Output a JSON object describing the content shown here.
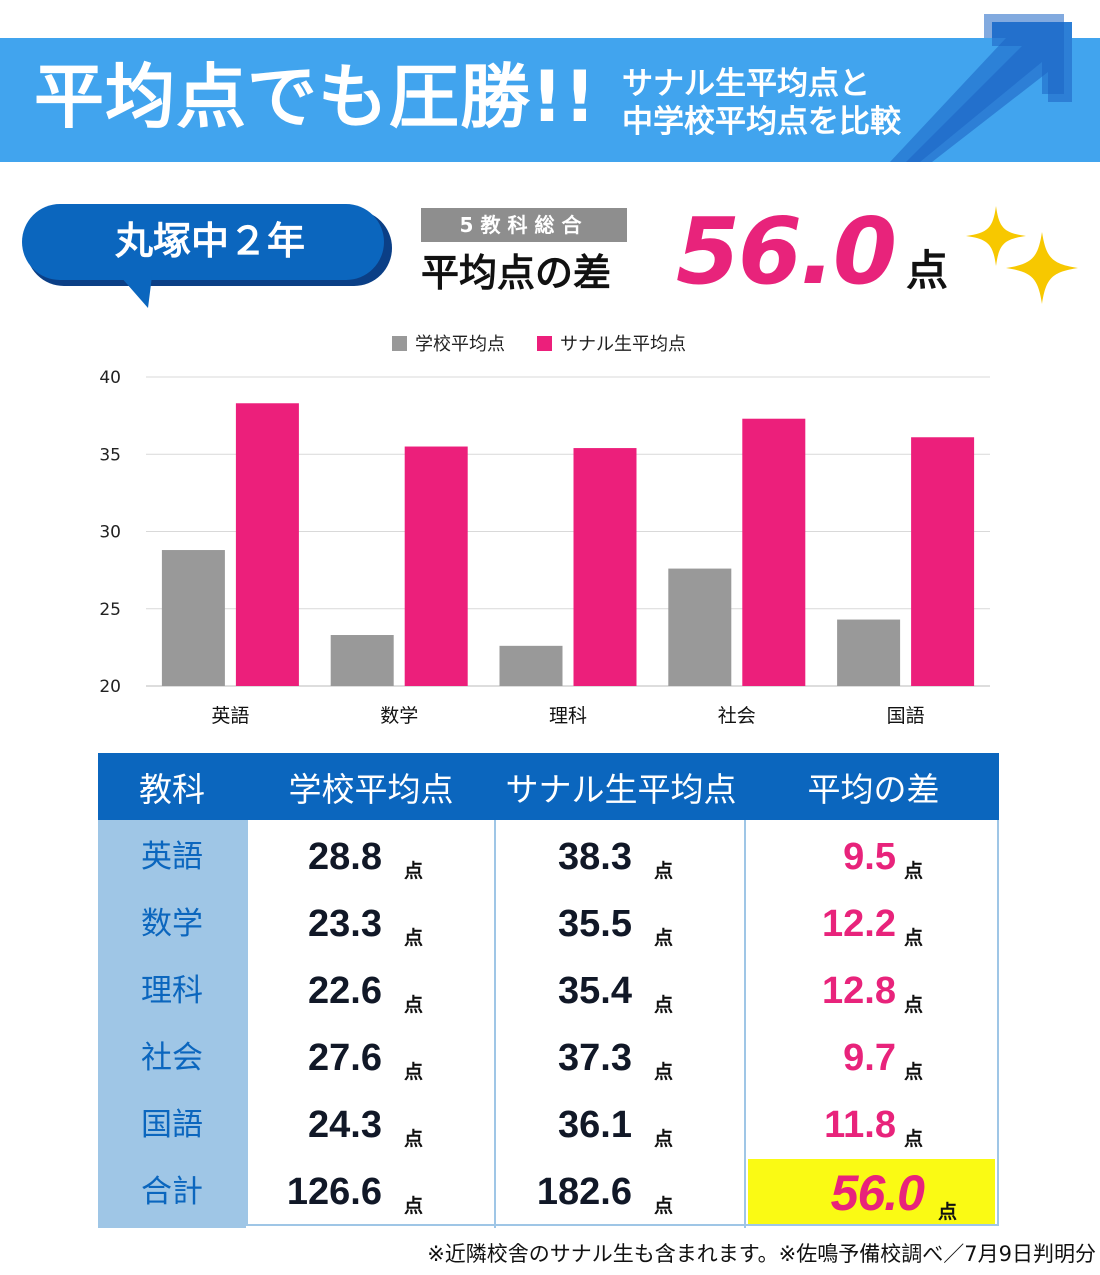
{
  "header": {
    "title": "平均点でも圧勝!!",
    "subtitle_line1": "サナル生平均点と",
    "subtitle_line2": "中学校平均点を比較",
    "banner_color": "#41a4ee",
    "arrow_color": "#0b66be"
  },
  "school": {
    "label": "丸塚中２年"
  },
  "summary": {
    "tag": "5教科総合",
    "label": "平均点の差",
    "value": "56.0",
    "unit": "点",
    "value_color": "#e8237b"
  },
  "chart_data": {
    "type": "bar",
    "categories": [
      "英語",
      "数学",
      "理科",
      "社会",
      "国語"
    ],
    "series": [
      {
        "name": "学校平均点",
        "values": [
          28.8,
          23.3,
          22.6,
          27.6,
          24.3
        ],
        "color": "#999999"
      },
      {
        "name": "サナル生平均点",
        "values": [
          38.3,
          35.5,
          35.4,
          37.3,
          36.1
        ],
        "color": "#ec1f7b"
      }
    ],
    "ylim": [
      20,
      40
    ],
    "yticks": [
      20,
      25,
      30,
      35,
      40
    ],
    "grid": true,
    "legend": "top-center"
  },
  "table": {
    "headers": [
      "教科",
      "学校平均点",
      "サナル生平均点",
      "平均の差"
    ],
    "unit": "点",
    "rows": [
      {
        "subject": "英語",
        "school": "28.8",
        "sanaru": "38.3",
        "diff": "9.5"
      },
      {
        "subject": "数学",
        "school": "23.3",
        "sanaru": "35.5",
        "diff": "12.2"
      },
      {
        "subject": "理科",
        "school": "22.6",
        "sanaru": "35.4",
        "diff": "12.8"
      },
      {
        "subject": "社会",
        "school": "27.6",
        "sanaru": "37.3",
        "diff": "9.7"
      },
      {
        "subject": "国語",
        "school": "24.3",
        "sanaru": "36.1",
        "diff": "11.8"
      }
    ],
    "total": {
      "subject": "合計",
      "school": "126.6",
      "sanaru": "182.6",
      "diff": "56.0"
    },
    "header_color": "#0b66be",
    "subject_bg": "#9fc6e6",
    "highlight_color": "#fafa14"
  },
  "footnote": "※近隣校舎のサナル生も含まれます。※佐鳴予備校調べ／7月9日判明分"
}
